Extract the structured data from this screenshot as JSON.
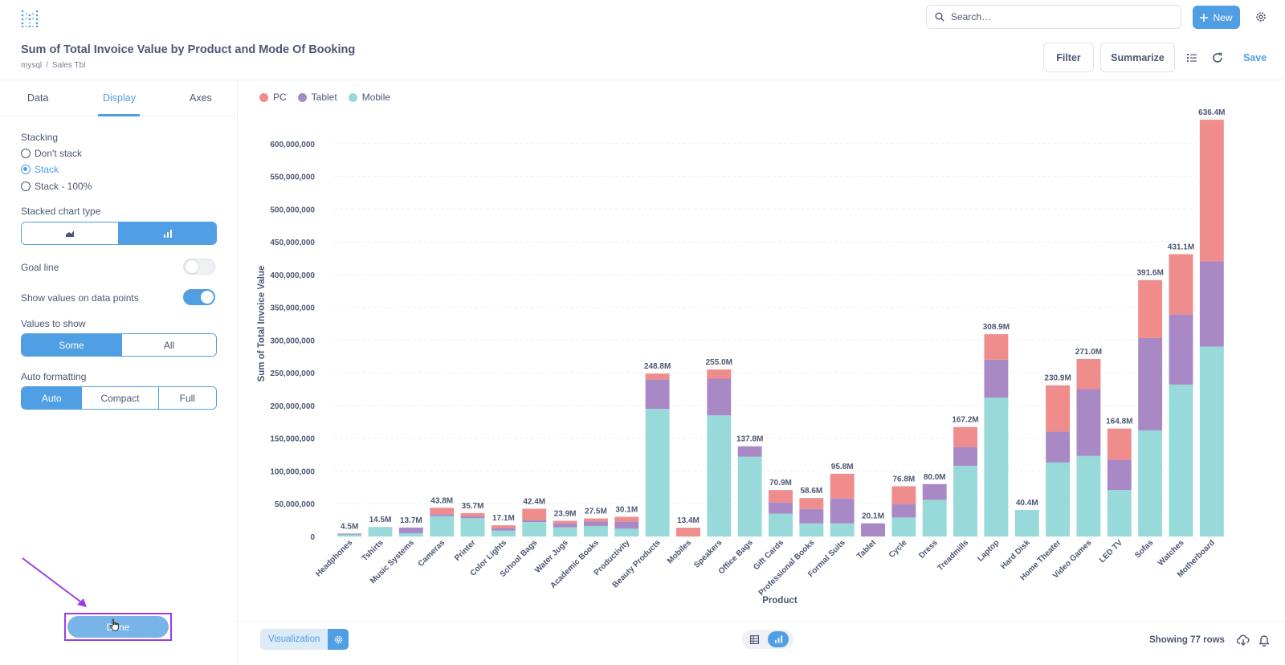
{
  "header": {
    "title": "Sum of Total Invoice Value by Product and Mode Of Booking",
    "breadcrumb": [
      "mysql",
      "Sales Tbl"
    ],
    "search_placeholder": "Search…",
    "new_label": "New",
    "filter_label": "Filter",
    "summarize_label": "Summarize",
    "save_label": "Save"
  },
  "sidebar": {
    "tabs": [
      "Data",
      "Display",
      "Axes"
    ],
    "active_tab": "Display",
    "stacking_label": "Stacking",
    "stacking_options": [
      "Don't stack",
      "Stack",
      "Stack - 100%"
    ],
    "stacking_selected": "Stack",
    "stacked_type_label": "Stacked chart type",
    "goal_line_label": "Goal line",
    "goal_line_on": false,
    "show_values_label": "Show values on data points",
    "show_values_on": true,
    "values_to_show_label": "Values to show",
    "values_to_show_options": [
      "Some",
      "All"
    ],
    "values_to_show_selected": "Some",
    "auto_formatting_label": "Auto formatting",
    "auto_formatting_options": [
      "Auto",
      "Compact",
      "Full"
    ],
    "auto_formatting_selected": "Auto",
    "done_label": "Done"
  },
  "footer": {
    "visualization_label": "Visualization",
    "rows_text": "Showing 77 rows"
  },
  "colors": {
    "accent": "#509ee3",
    "pc": "#ef8c8c",
    "tablet": "#a989c5",
    "mobile": "#98d9d9",
    "highlight": "#9b3de6"
  },
  "chart_data": {
    "type": "bar",
    "stacked": true,
    "xlabel": "Product",
    "ylabel": "Sum of Total Invoice Value",
    "ylim": [
      0,
      650000000
    ],
    "yticks": [
      0,
      50000000,
      100000000,
      150000000,
      200000000,
      250000000,
      300000000,
      350000000,
      400000000,
      450000000,
      500000000,
      550000000,
      600000000
    ],
    "ytick_labels": [
      "0",
      "50,000,000",
      "100,000,000",
      "150,000,000",
      "200,000,000",
      "250,000,000",
      "300,000,000",
      "350,000,000",
      "400,000,000",
      "450,000,000",
      "500,000,000",
      "550,000,000",
      "600,000,000"
    ],
    "legend_position": "top-left",
    "categories": [
      "Headphones",
      "Tshirts",
      "Music Systems",
      "Cameras",
      "Printer",
      "Color Lights",
      "School Bags",
      "Water Jugs",
      "Academic Books",
      "Productivity",
      "Beauty Products",
      "Mobiles",
      "Speakers",
      "Office Bags",
      "Gift Cards",
      "Professional Books",
      "Formal Suits",
      "Tablet",
      "Cycle",
      "Dress",
      "Treadmills",
      "Laptop",
      "Hard Disk",
      "Home Theater",
      "Video Games",
      "LED TV",
      "Sofas",
      "Watches",
      "Motherboard"
    ],
    "series": [
      {
        "name": "Mobile",
        "color": "#98d9d9",
        "values": [
          3000000,
          14500000,
          5000000,
          31000000,
          28000000,
          9000000,
          22000000,
          14000000,
          16000000,
          12000000,
          195000000,
          0,
          185000000,
          122000000,
          35000000,
          20000000,
          20000000,
          0,
          29000000,
          56000000,
          108000000,
          212000000,
          40400000,
          113000000,
          123000000,
          71000000,
          162000000,
          232000000,
          290000000
        ]
      },
      {
        "name": "Tablet",
        "color": "#a989c5",
        "values": [
          1500000,
          0,
          8700000,
          3000000,
          3000000,
          4000000,
          3000000,
          6000000,
          7000000,
          11000000,
          45000000,
          0,
          56000000,
          15800000,
          17000000,
          22000000,
          38000000,
          20100000,
          21000000,
          24000000,
          29000000,
          58000000,
          0,
          47000000,
          102000000,
          46000000,
          141000000,
          107000000,
          130000000
        ]
      },
      {
        "name": "PC",
        "color": "#ef8c8c",
        "values": [
          0,
          0,
          0,
          9800000,
          4700000,
          4100000,
          17400000,
          3900000,
          4500000,
          7100000,
          8800000,
          13400000,
          14000000,
          0,
          18900000,
          16600000,
          37800000,
          0,
          26800000,
          0,
          30200000,
          38900000,
          0,
          70900000,
          46000000,
          47800000,
          88600000,
          92100000,
          216400000
        ]
      }
    ],
    "value_labels": [
      "4.5M",
      "14.5M",
      "13.7M",
      "43.8M",
      "35.7M",
      "17.1M",
      "42.4M",
      "23.9M",
      "27.5M",
      "30.1M",
      "248.8M",
      "13.4M",
      "255.0M",
      "137.8M",
      "70.9M",
      "58.6M",
      "95.8M",
      "20.1M",
      "76.8M",
      "80.0M",
      "167.2M",
      "308.9M",
      "40.4M",
      "230.9M",
      "271.0M",
      "164.8M",
      "391.6M",
      "431.1M",
      "636.4M"
    ],
    "totals": [
      4500000,
      14500000,
      13700000,
      43800000,
      35700000,
      17100000,
      42400000,
      23900000,
      27500000,
      30100000,
      248800000,
      13400000,
      255000000,
      137800000,
      70900000,
      58600000,
      95800000,
      20100000,
      76800000,
      80000000,
      167200000,
      308900000,
      40400000,
      230900000,
      271000000,
      164800000,
      391600000,
      431100000,
      636400000
    ],
    "legend": [
      "PC",
      "Tablet",
      "Mobile"
    ]
  }
}
